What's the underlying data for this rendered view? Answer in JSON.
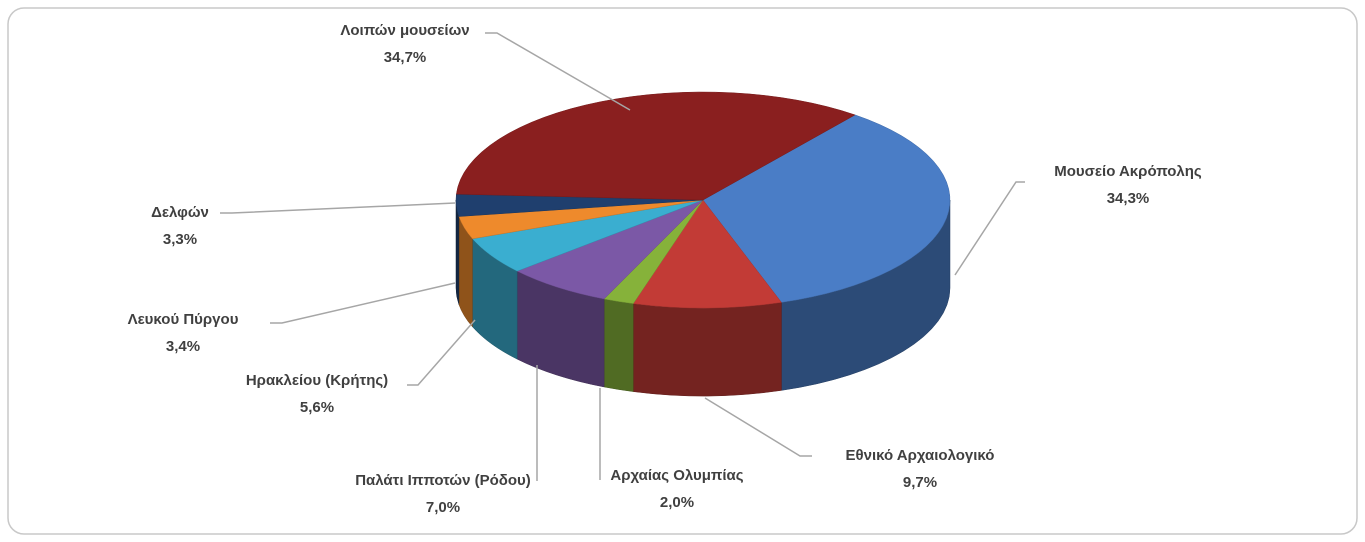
{
  "chart_data": {
    "type": "pie3d",
    "categories": [
      "Μουσείο Ακρόπολης",
      "Εθνικό Αρχαιολογικό",
      "Αρχαίας Ολυμπίας",
      "Παλάτι Ιπποτών (Ρόδου)",
      "Ηρακλείου (Κρήτης)",
      "Λευκού Πύργου",
      "Δελφών",
      "Λοιπών μουσείων"
    ],
    "values": [
      34.3,
      9.7,
      2.0,
      7.0,
      5.6,
      3.4,
      3.3,
      34.7
    ],
    "value_labels": [
      "34,3%",
      "9,7%",
      "2,0%",
      "7,0%",
      "5,6%",
      "3,4%",
      "3,3%",
      "34,7%"
    ],
    "colors": [
      "#4a7dc6",
      "#c23b36",
      "#86b23a",
      "#7b58a6",
      "#3aaed0",
      "#ee8a2c",
      "#1f3f6e",
      "#8a1f1f"
    ]
  }
}
